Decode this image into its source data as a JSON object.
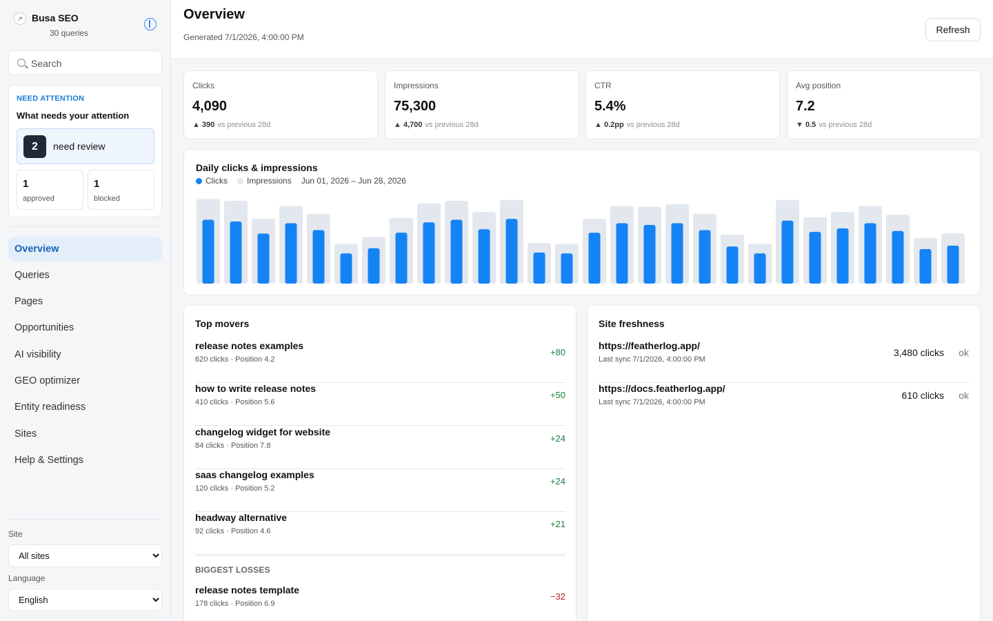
{
  "brand": {
    "name": "Busa SEO",
    "sub": "30 queries",
    "logo_icon": "arrow-out-icon"
  },
  "search": {
    "placeholder": "Search"
  },
  "attention": {
    "kicker": "NEED ATTENTION",
    "title": "What needs your attention",
    "review_count": "2",
    "review_label": "need review",
    "approved_count": "1",
    "approved_label": "approved",
    "blocked_count": "1",
    "blocked_label": "blocked"
  },
  "nav": [
    "Overview",
    "Queries",
    "Pages",
    "Opportunities",
    "AI visibility",
    "GEO optimizer",
    "Entity readiness",
    "Sites",
    "Help & Settings"
  ],
  "site_filter": {
    "label": "Site",
    "value": "All sites"
  },
  "language_filter": {
    "label": "Language",
    "value": "English"
  },
  "header": {
    "title": "Overview",
    "generated": "Generated 7/1/2026, 4:00:00 PM",
    "refresh_label": "Refresh"
  },
  "kpis": [
    {
      "label": "Clicks",
      "value": "4,090",
      "arrow": "▲",
      "delta": "390",
      "vs": "vs previous 28d"
    },
    {
      "label": "Impressions",
      "value": "75,300",
      "arrow": "▲",
      "delta": "4,700",
      "vs": "vs previous 28d"
    },
    {
      "label": "CTR",
      "value": "5.4%",
      "arrow": "▲",
      "delta": "0.2pp",
      "vs": "vs previous 28d"
    },
    {
      "label": "Avg position",
      "value": "7.2",
      "arrow": "▼",
      "delta": "0.5",
      "vs": "vs previous 28d"
    }
  ],
  "chart_data": {
    "type": "bar",
    "title": "Daily clicks & impressions",
    "date_range": "Jun 01, 2026 – Jun 28, 2026",
    "colors": {
      "clicks": "#1483f5",
      "impressions": "#e3e7ee"
    },
    "series": [
      {
        "name": "Clicks",
        "values": [
          0.74,
          0.72,
          0.58,
          0.7,
          0.62,
          0.35,
          0.41,
          0.59,
          0.71,
          0.74,
          0.63,
          0.75,
          0.36,
          0.35,
          0.59,
          0.7,
          0.68,
          0.7,
          0.62,
          0.43,
          0.35,
          0.73,
          0.6,
          0.64,
          0.7,
          0.61,
          0.4,
          0.44
        ]
      },
      {
        "name": "Impressions",
        "values": [
          0.98,
          0.96,
          0.75,
          0.9,
          0.81,
          0.46,
          0.54,
          0.76,
          0.93,
          0.96,
          0.83,
          0.97,
          0.47,
          0.46,
          0.75,
          0.9,
          0.89,
          0.92,
          0.81,
          0.57,
          0.46,
          0.97,
          0.77,
          0.83,
          0.9,
          0.8,
          0.53,
          0.58
        ]
      }
    ]
  },
  "top_movers": {
    "title": "Top movers",
    "gains": [
      {
        "query": "release notes examples",
        "meta": "620 clicks · Position 4.2",
        "change": "+80"
      },
      {
        "query": "how to write release notes",
        "meta": "410 clicks · Position 5.6",
        "change": "+50"
      },
      {
        "query": "changelog widget for website",
        "meta": "84 clicks · Position 7.8",
        "change": "+24"
      },
      {
        "query": "saas changelog examples",
        "meta": "120 clicks · Position 5.2",
        "change": "+24"
      },
      {
        "query": "headway alternative",
        "meta": "92 clicks · Position 4.6",
        "change": "+21"
      }
    ],
    "losses_label": "BIGGEST LOSSES",
    "losses": [
      {
        "query": "release notes template",
        "meta": "178 clicks · Position 6.9",
        "change": "−32"
      }
    ]
  },
  "site_freshness": {
    "title": "Site freshness",
    "sites": [
      {
        "url": "https://featherlog.app/",
        "sync": "Last sync 7/1/2026, 4:00:00 PM",
        "clicks": "3,480 clicks",
        "status": "ok"
      },
      {
        "url": "https://docs.featherlog.app/",
        "sync": "Last sync 7/1/2026, 4:00:00 PM",
        "clicks": "610 clicks",
        "status": "ok"
      }
    ]
  }
}
